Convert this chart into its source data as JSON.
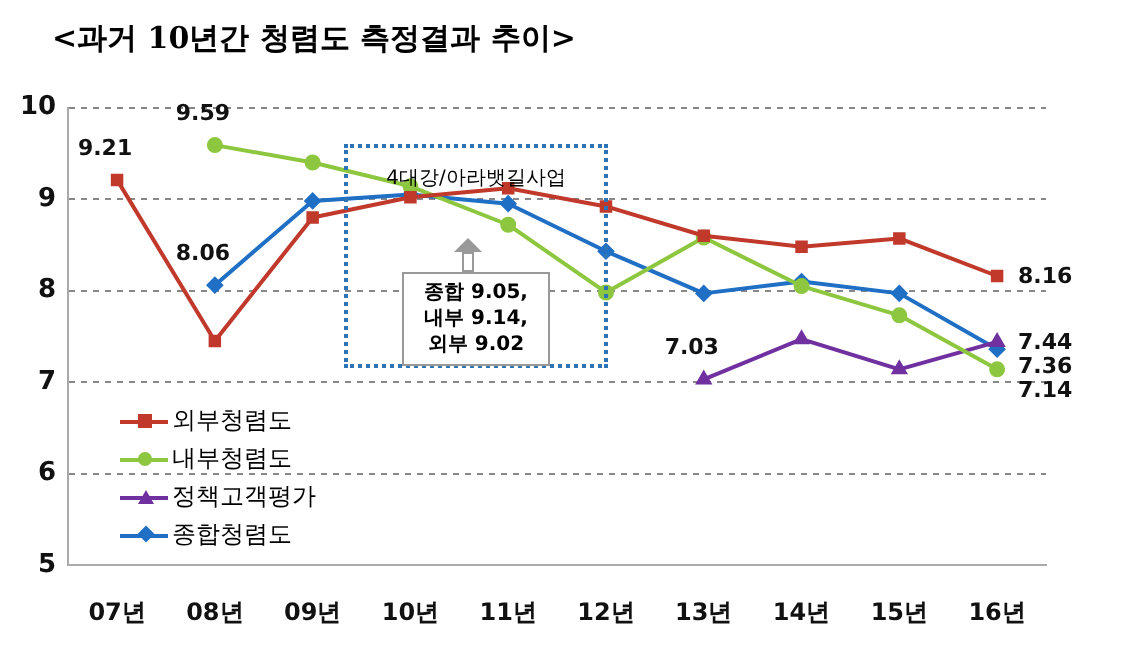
{
  "chart_data": {
    "type": "line",
    "title": "<과거 10년간 청렴도 측정결과 추이>",
    "categories": [
      "07년",
      "08년",
      "09년",
      "10년",
      "11년",
      "12년",
      "13년",
      "14년",
      "15년",
      "16년"
    ],
    "ylim": [
      5,
      10
    ],
    "yticks": [
      5,
      6,
      7,
      8,
      9,
      10
    ],
    "grid": "y",
    "legend": "bottom left",
    "annotations": [
      "4대강/아라뱃길사업",
      "종합 9.05,\n내부 9.14,\n외부 9.02"
    ],
    "series": [
      {
        "name": "외부청렴도",
        "color": "#c0392b",
        "marker": "square",
        "values": [
          9.21,
          7.45,
          8.8,
          9.02,
          9.12,
          8.92,
          8.6,
          8.48,
          8.57,
          8.16
        ],
        "value_labels": [
          "9.21",
          null,
          null,
          null,
          null,
          null,
          null,
          null,
          null,
          "8.16"
        ]
      },
      {
        "name": "내부청렴도",
        "color": "#8dc63f",
        "marker": "circle",
        "values": [
          null,
          9.59,
          9.4,
          9.14,
          8.72,
          7.98,
          8.58,
          8.05,
          7.73,
          7.14
        ],
        "value_labels": [
          null,
          "9.59",
          null,
          null,
          null,
          null,
          null,
          null,
          null,
          "7.14"
        ]
      },
      {
        "name": "정책고객평가",
        "color": "#7030a0",
        "marker": "triangle",
        "values": [
          null,
          null,
          null,
          null,
          null,
          null,
          7.03,
          7.47,
          7.14,
          7.44
        ],
        "value_labels": [
          null,
          null,
          null,
          null,
          null,
          null,
          "7.03",
          null,
          null,
          "7.44"
        ]
      },
      {
        "name": "종합청렴도",
        "color": "#1f6fc5",
        "marker": "diamond",
        "values": [
          null,
          8.06,
          8.98,
          9.05,
          8.95,
          8.43,
          7.97,
          8.1,
          7.97,
          7.36
        ],
        "value_labels": [
          null,
          "8.06",
          null,
          null,
          null,
          null,
          null,
          null,
          null,
          "7.36"
        ]
      }
    ]
  }
}
